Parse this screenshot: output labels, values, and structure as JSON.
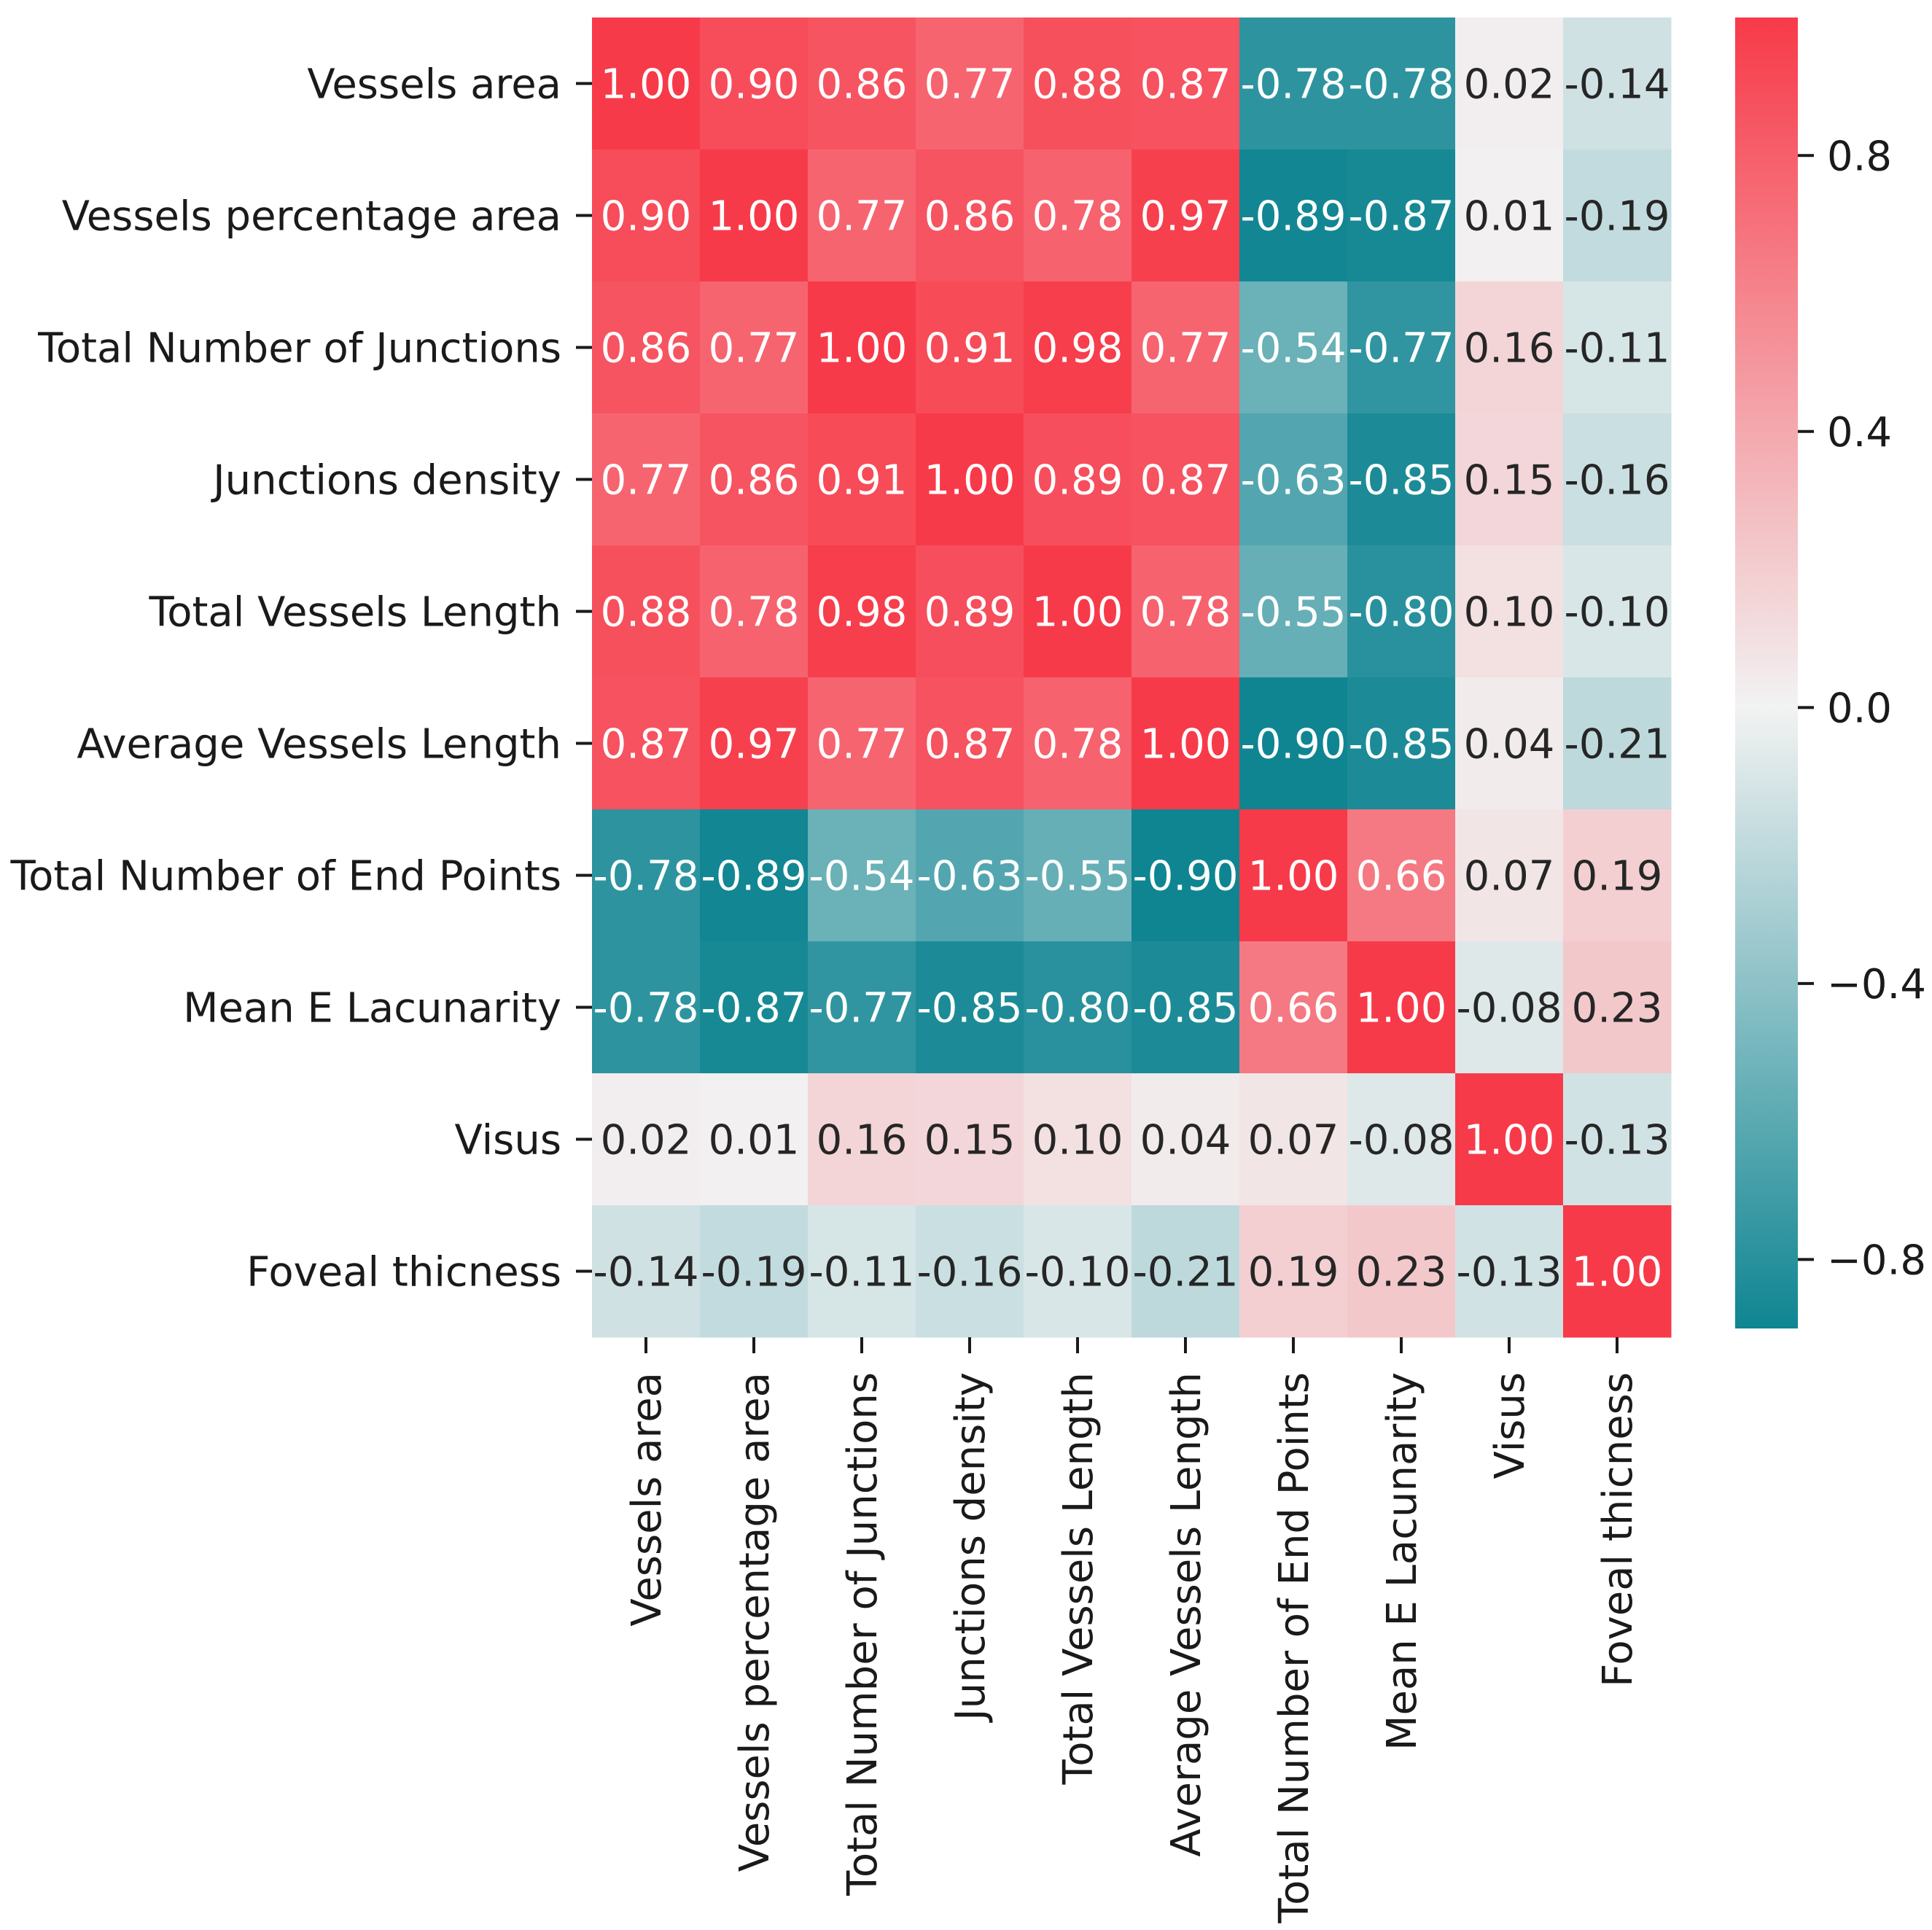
{
  "chart_data": {
    "type": "heatmap",
    "title": "",
    "xlabel": "",
    "ylabel": "",
    "labels": [
      "Vessels area",
      "Vessels percentage area",
      "Total Number of Junctions",
      "Junctions density",
      "Total Vessels Length",
      "Average Vessels Length",
      "Total Number of End Points",
      "Mean E Lacunarity",
      "Visus",
      "Foveal thicness"
    ],
    "values": [
      [
        1.0,
        0.9,
        0.86,
        0.77,
        0.88,
        0.87,
        -0.78,
        -0.78,
        0.02,
        -0.14
      ],
      [
        0.9,
        1.0,
        0.77,
        0.86,
        0.78,
        0.97,
        -0.89,
        -0.87,
        0.01,
        -0.19
      ],
      [
        0.86,
        0.77,
        1.0,
        0.91,
        0.98,
        0.77,
        -0.54,
        -0.77,
        0.16,
        -0.11
      ],
      [
        0.77,
        0.86,
        0.91,
        1.0,
        0.89,
        0.87,
        -0.63,
        -0.85,
        0.15,
        -0.16
      ],
      [
        0.88,
        0.78,
        0.98,
        0.89,
        1.0,
        0.78,
        -0.55,
        -0.8,
        0.1,
        -0.1
      ],
      [
        0.87,
        0.97,
        0.77,
        0.87,
        0.78,
        1.0,
        -0.9,
        -0.85,
        0.04,
        -0.21
      ],
      [
        -0.78,
        -0.89,
        -0.54,
        -0.63,
        -0.55,
        -0.9,
        1.0,
        0.66,
        0.07,
        0.19
      ],
      [
        -0.78,
        -0.87,
        -0.77,
        -0.85,
        -0.8,
        -0.85,
        0.66,
        1.0,
        -0.08,
        0.23
      ],
      [
        0.02,
        0.01,
        0.16,
        0.15,
        0.1,
        0.04,
        0.07,
        -0.08,
        1.0,
        -0.13
      ],
      [
        -0.14,
        -0.19,
        -0.11,
        -0.16,
        -0.1,
        -0.21,
        0.19,
        0.23,
        -0.13,
        1.0
      ]
    ],
    "value_format": "2 decimals",
    "colorbar": {
      "range": [
        -0.9,
        1.0
      ],
      "ticks": [
        -0.8,
        -0.4,
        0.0,
        0.4,
        0.8
      ],
      "tick_labels": [
        "−0.8",
        "−0.4",
        "0.0",
        "0.4",
        "0.8"
      ],
      "position": "right"
    },
    "colormap": {
      "negative": "#0f8592",
      "mid": "#f2f2f2",
      "positive": "#f73a49"
    },
    "grid": false,
    "legend": "none"
  }
}
